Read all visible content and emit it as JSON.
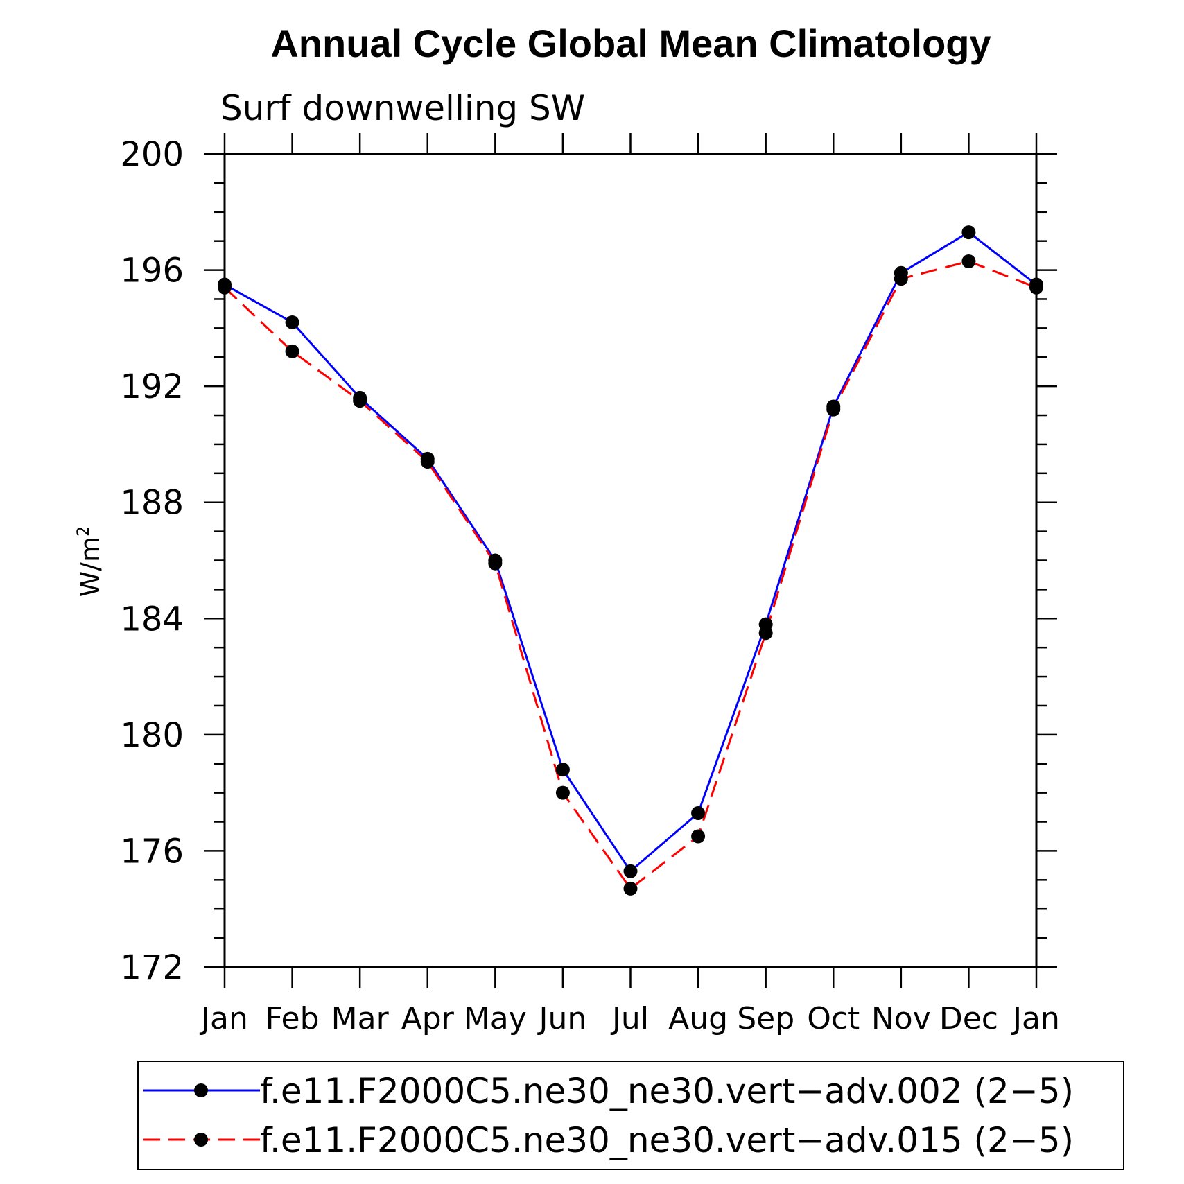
{
  "chart_data": {
    "type": "line",
    "title": "Annual Cycle Global Mean Climatology",
    "subtitle": "Surf downwelling SW",
    "ylabel": "W/m",
    "ylabel_superscript": "2",
    "ylim": [
      172,
      200
    ],
    "yticks": [
      "172",
      "176",
      "180",
      "184",
      "188",
      "192",
      "196",
      "200"
    ],
    "categories": [
      "Jan",
      "Feb",
      "Mar",
      "Apr",
      "May",
      "Jun",
      "Jul",
      "Aug",
      "Sep",
      "Oct",
      "Nov",
      "Dec",
      "Jan"
    ],
    "legend_position": "bottom",
    "series": [
      {
        "name": "f.e11.F2000C5.ne30_ne30.vert−adv.002 (2−5)",
        "color": "#0000ff",
        "dash": "solid",
        "values": [
          195.5,
          194.2,
          191.6,
          189.5,
          186.0,
          178.8,
          175.3,
          177.3,
          183.8,
          191.3,
          195.9,
          197.3,
          195.5
        ]
      },
      {
        "name": "f.e11.F2000C5.ne30_ne30.vert−adv.015 (2−5)",
        "color": "#ff0000",
        "dash": "dashed",
        "values": [
          195.4,
          193.2,
          191.5,
          189.4,
          185.9,
          178.0,
          174.7,
          176.5,
          183.5,
          191.2,
          195.7,
          196.3,
          195.4
        ]
      }
    ]
  }
}
